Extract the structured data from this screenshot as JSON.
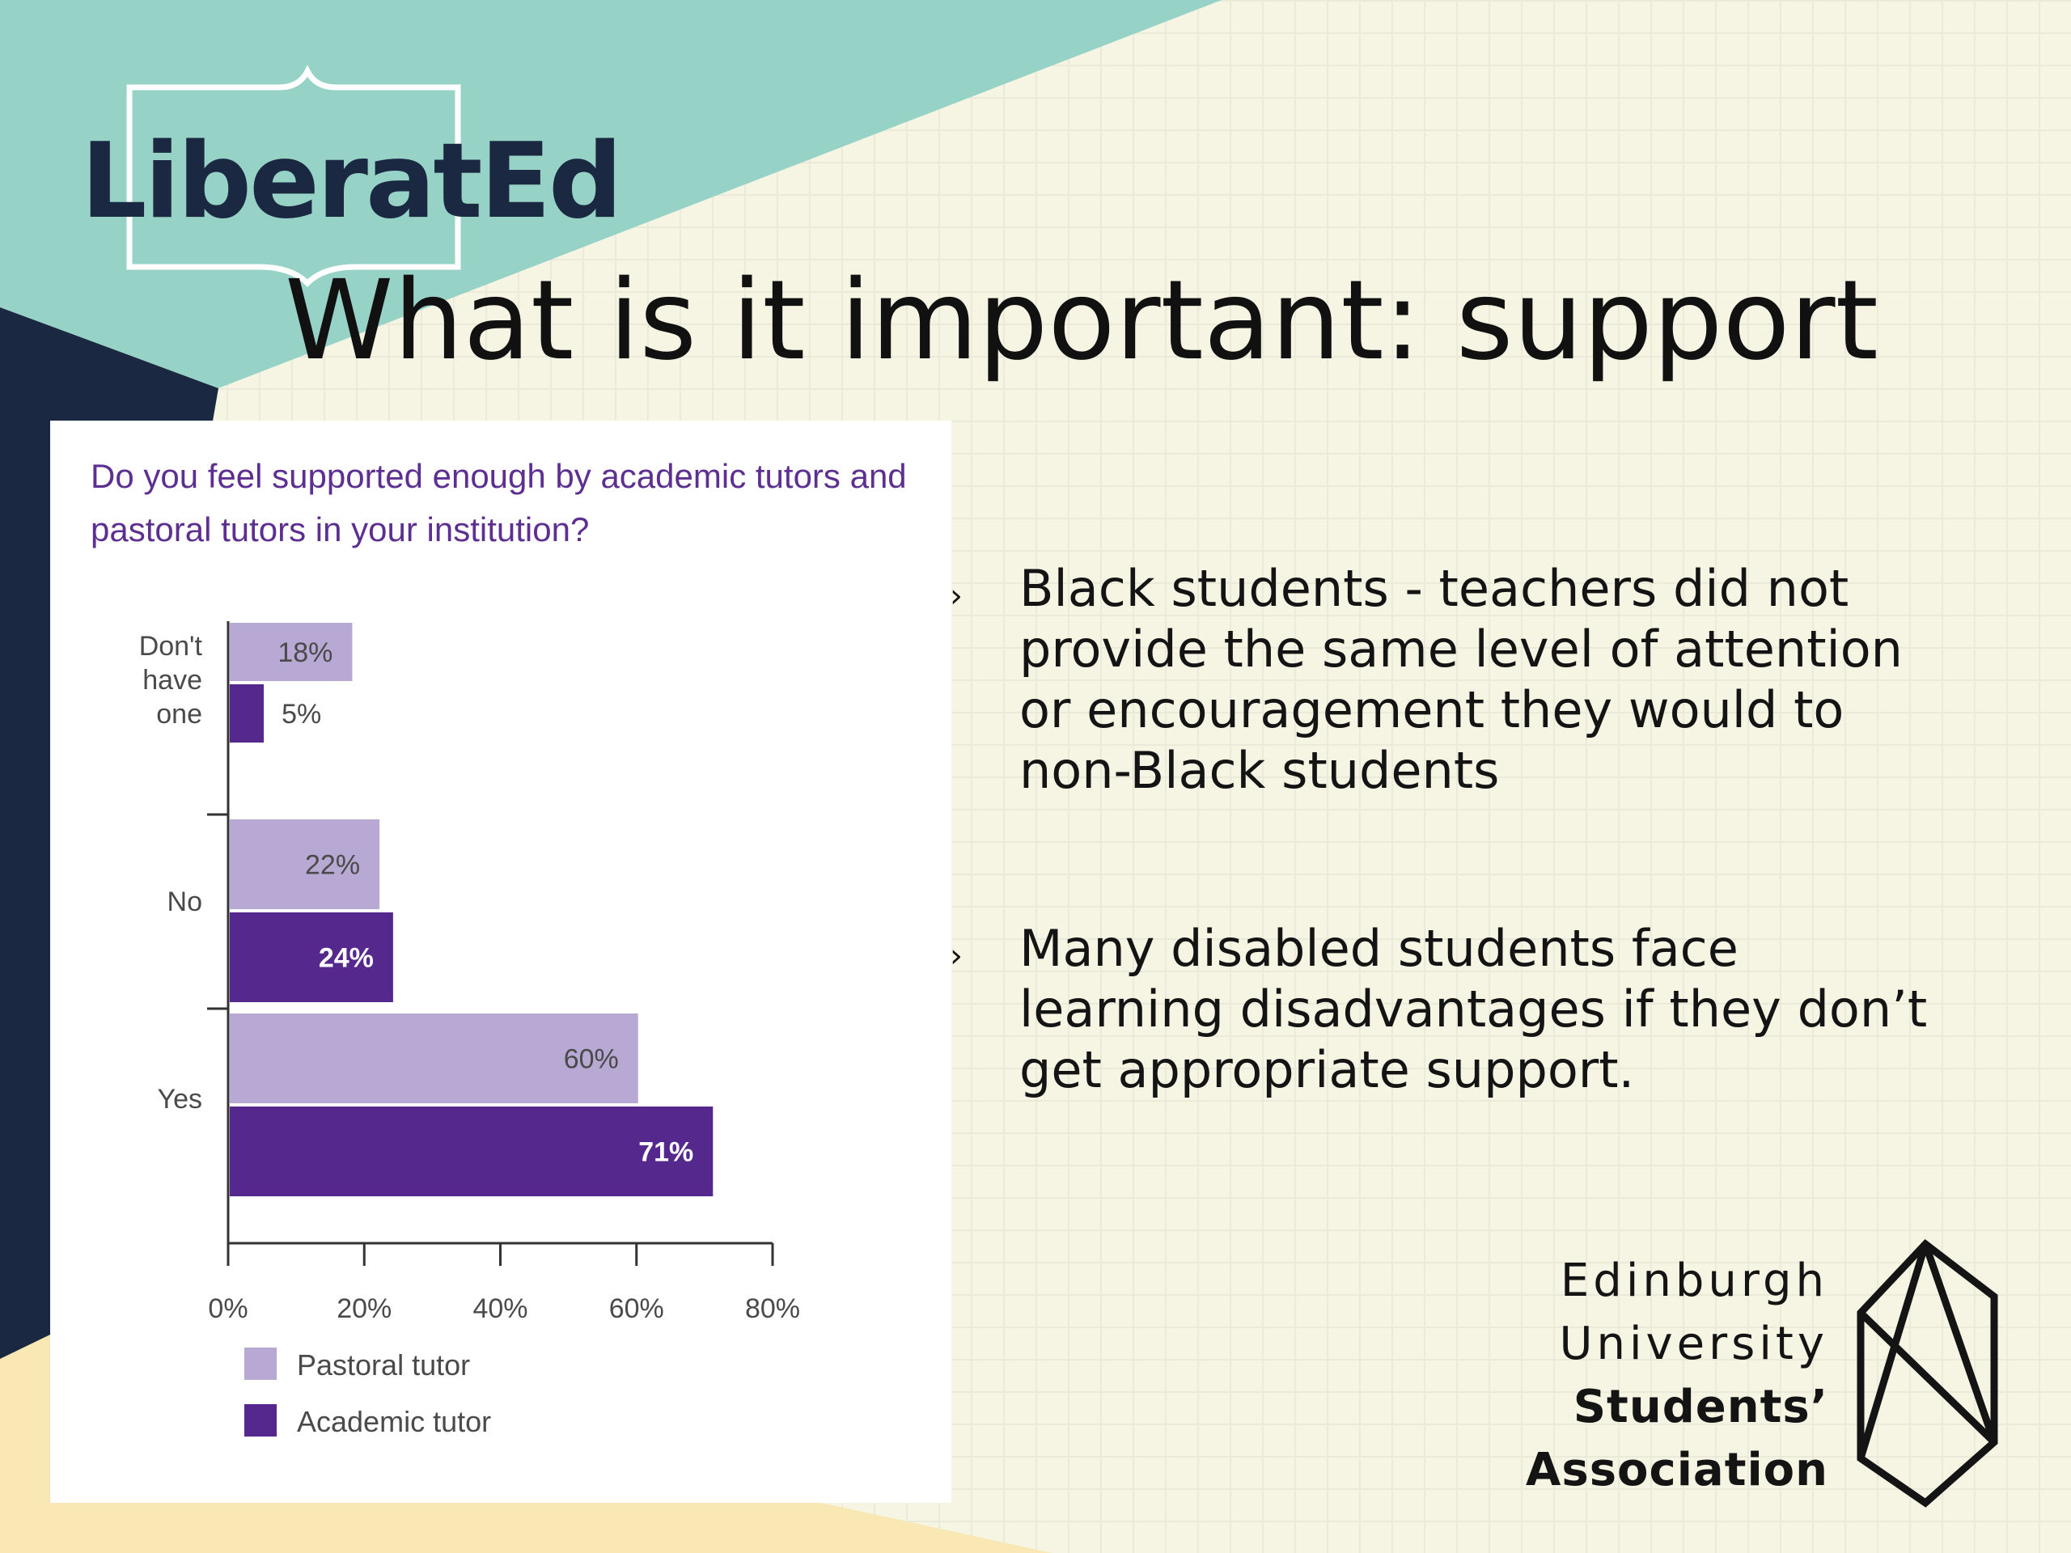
{
  "slide": {
    "title": "What is it important: support",
    "logo": "LiberatEd"
  },
  "chart_data": {
    "type": "bar",
    "orientation": "horizontal",
    "title": "Do you feel supported enough by academic tutors and pastoral tutors in your institution?",
    "categories": [
      "Don't have one",
      "No",
      "Yes"
    ],
    "series": [
      {
        "name": "Pastoral tutor",
        "values": [
          18,
          22,
          60
        ],
        "labels": [
          "18%",
          "22%",
          "60%"
        ],
        "color": "#b7a9d4"
      },
      {
        "name": "Academic tutor",
        "values": [
          5,
          24,
          71
        ],
        "labels": [
          "5%",
          "24%",
          "71%"
        ],
        "color": "#55288e"
      }
    ],
    "xticks": [
      "0%",
      "20%",
      "40%",
      "60%",
      "80%"
    ],
    "xlim": [
      0,
      80
    ],
    "legend": "bottom-left"
  },
  "bullets": [
    "Black students - teachers did not provide the same level of attention or encouragement they would to non-Black students",
    "Many disabled students face learning disadvantages if they don’t get appropriate support."
  ],
  "eusa": {
    "line1": "Edinburgh",
    "line2": "University",
    "line3": "Students’",
    "line4": "Association"
  },
  "colors": {
    "teal": "#97d2c7",
    "navy": "#1b2841",
    "cream": "#f9e8b4",
    "purple_text": "#5d2f91",
    "pastoral": "#b7a9d4",
    "academic": "#55288e"
  }
}
